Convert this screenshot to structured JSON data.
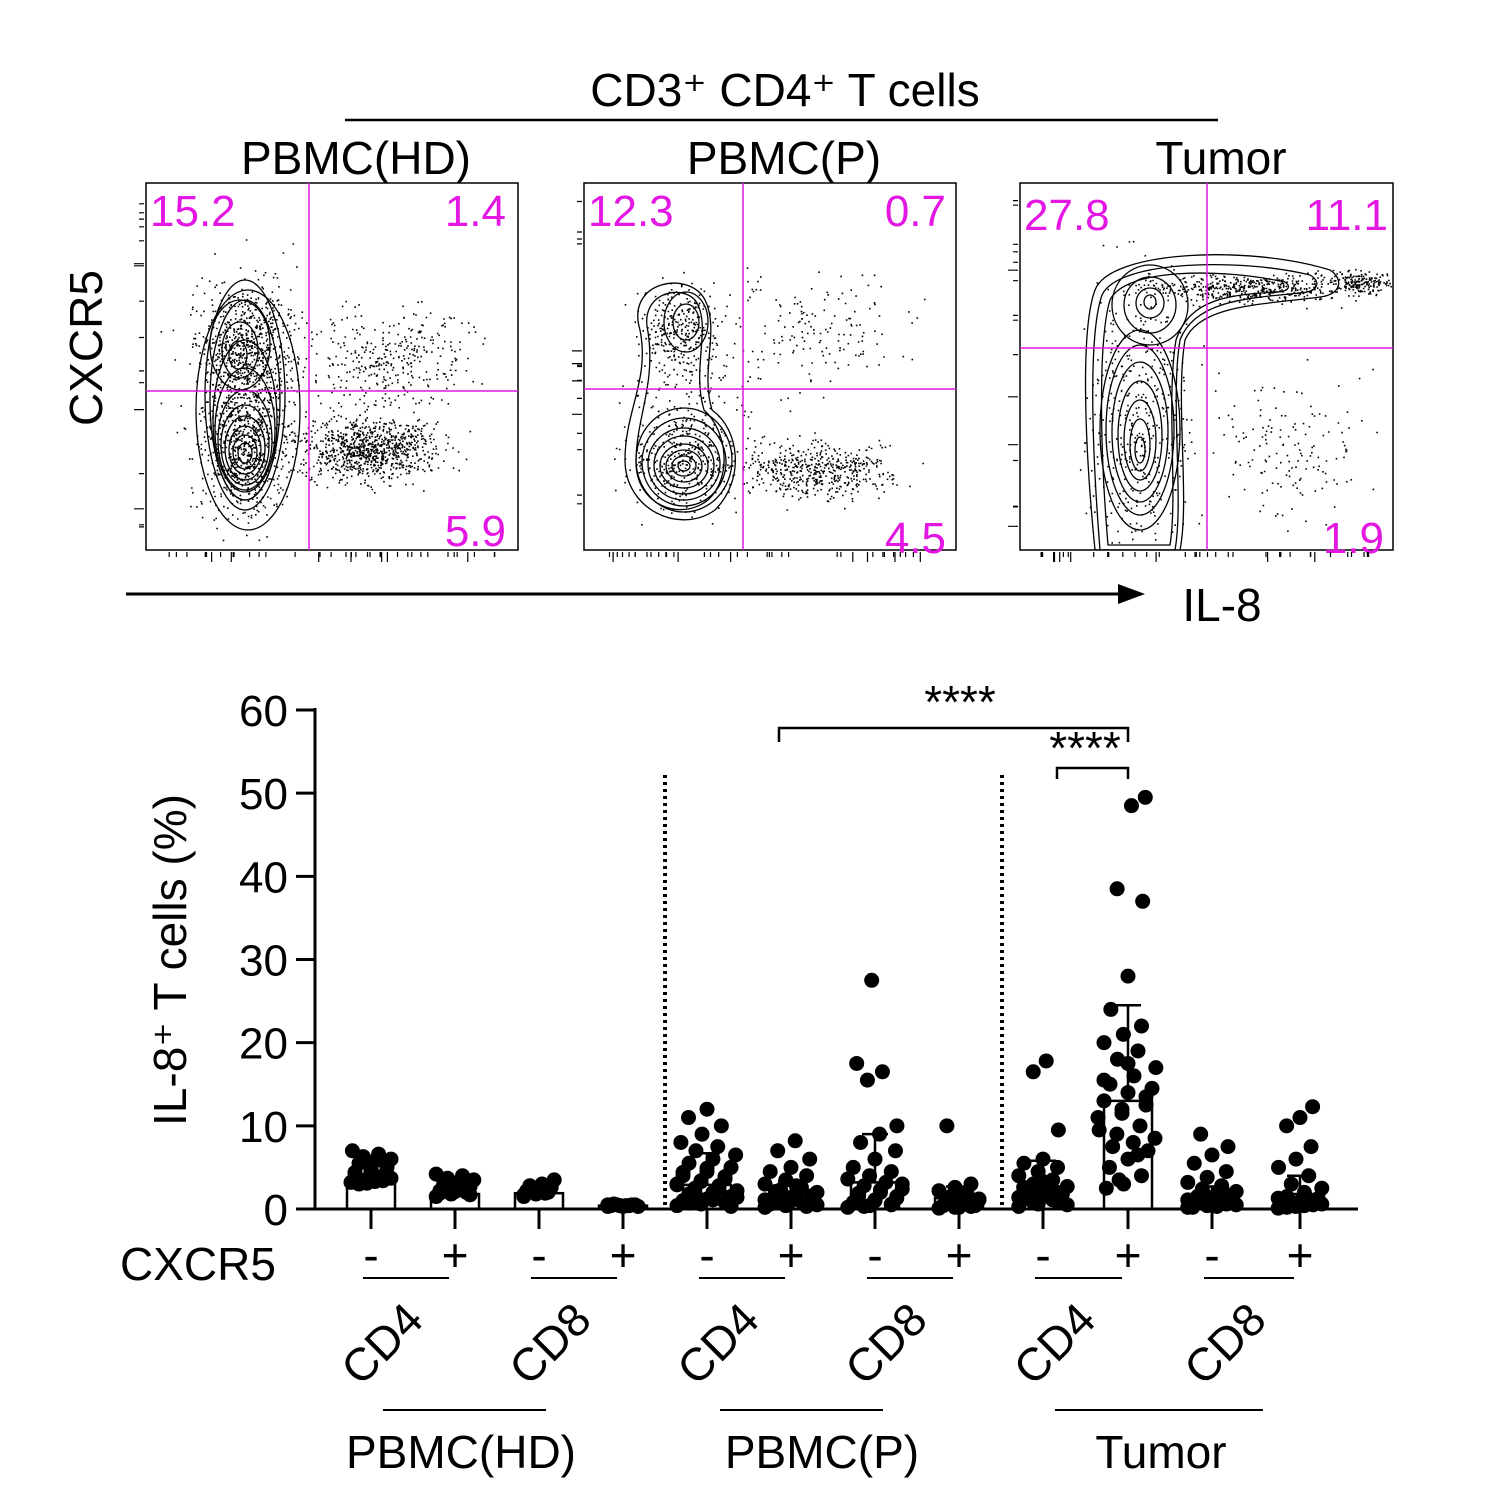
{
  "flow": {
    "header": "CD3⁺ CD4⁺ T cells",
    "y_marker": "CXCR5",
    "x_marker": "IL-8",
    "quadrant_color": "#e316e3",
    "panels": [
      {
        "title": "PBMC(HD)",
        "ul": "15.2",
        "ur": "1.4",
        "lr": "5.9"
      },
      {
        "title": "PBMC(P)",
        "ul": "12.3",
        "ur": "0.7",
        "lr": "4.5"
      },
      {
        "title": "Tumor",
        "ul": "27.8",
        "ur": "11.1",
        "lr": "1.9"
      }
    ]
  },
  "chart_data": {
    "type": "bar",
    "ylabel": "IL-8⁺ T cells (%)",
    "ylim": [
      0,
      60
    ],
    "yticks": [
      "0",
      "10",
      "20",
      "30",
      "40",
      "50",
      "60"
    ],
    "row_label": "CXCR5",
    "categories": [
      {
        "tissue": "PBMC(HD)",
        "cell": "CD4",
        "cxcr5": "-",
        "mean": 3.0,
        "err": 0.7,
        "points": [
          3.2,
          3.6,
          4.0,
          4.4,
          4.8,
          5.2,
          5.5,
          5.8,
          6.0,
          6.3,
          6.6,
          7.0,
          3.1,
          3.4,
          4.2,
          4.6,
          5.0,
          3.0,
          3.3,
          3.7
        ]
      },
      {
        "tissue": "PBMC(HD)",
        "cell": "CD4",
        "cxcr5": "+",
        "mean": 1.8,
        "err": 0.5,
        "points": [
          1.5,
          1.8,
          2.0,
          2.2,
          2.5,
          2.7,
          3.0,
          3.2,
          3.5,
          3.7,
          4.0,
          4.2,
          2.4,
          2.6,
          1.9,
          2.1,
          1.7,
          2.9
        ]
      },
      {
        "tissue": "PBMC(HD)",
        "cell": "CD8",
        "cxcr5": "-",
        "mean": 1.9,
        "err": 0.4,
        "points": [
          1.5,
          1.8,
          2.0,
          2.2,
          2.4,
          2.6,
          2.8,
          3.0,
          3.5,
          2.1,
          1.9,
          1.7
        ]
      },
      {
        "tissue": "PBMC(HD)",
        "cell": "CD8",
        "cxcr5": "+",
        "mean": 0.4,
        "err": 0.1,
        "points": [
          0.3,
          0.4,
          0.5,
          0.4,
          0.3,
          0.5,
          0.6,
          0.4,
          0.3,
          0.5,
          0.4,
          0.5
        ]
      },
      {
        "tissue": "PBMC(P)",
        "cell": "CD4",
        "cxcr5": "-",
        "mean": 2.9,
        "err": 3.8,
        "points": [
          0.4,
          0.6,
          0.8,
          1.0,
          1.2,
          1.5,
          1.8,
          2.0,
          2.2,
          2.5,
          2.8,
          3.0,
          3.3,
          3.6,
          4.0,
          4.5,
          5.0,
          5.5,
          6.0,
          6.5,
          7.0,
          7.5,
          8.0,
          9.0,
          10.0,
          11.0,
          12.0,
          0.5,
          0.7,
          1.1,
          1.4,
          1.9,
          2.4,
          2.9,
          3.4,
          3.9,
          4.4,
          4.9,
          0.3,
          0.9
        ]
      },
      {
        "tissue": "PBMC(P)",
        "cell": "CD4",
        "cxcr5": "+",
        "mean": 1.5,
        "err": 1.8,
        "points": [
          0.2,
          0.4,
          0.6,
          0.8,
          1.0,
          1.2,
          1.5,
          1.8,
          2.0,
          2.3,
          2.6,
          3.0,
          3.5,
          4.0,
          4.5,
          5.0,
          6.0,
          7.0,
          8.2,
          0.5,
          0.7,
          0.9,
          1.1,
          1.3,
          0.3,
          0.6,
          1.4,
          1.6,
          2.1,
          2.8
        ]
      },
      {
        "tissue": "PBMC(P)",
        "cell": "CD8",
        "cxcr5": "-",
        "mean": 3.2,
        "err": 5.8,
        "points": [
          0.2,
          0.4,
          0.6,
          0.8,
          1.0,
          1.3,
          1.6,
          2.0,
          2.4,
          2.8,
          3.2,
          3.6,
          4.0,
          4.5,
          5.0,
          6.0,
          7.0,
          8.0,
          9.0,
          10.0,
          15.5,
          16.5,
          17.5,
          27.5,
          0.5,
          0.7,
          1.1,
          1.5,
          1.9,
          2.3,
          3.0,
          0.3
        ]
      },
      {
        "tissue": "PBMC(P)",
        "cell": "CD8",
        "cxcr5": "+",
        "mean": 1.3,
        "err": 1.4,
        "points": [
          0.1,
          0.2,
          0.3,
          0.4,
          0.5,
          0.6,
          0.8,
          1.0,
          1.2,
          1.5,
          1.8,
          2.2,
          2.6,
          3.0,
          10.0,
          0.2,
          0.4,
          0.7,
          0.9,
          1.1
        ]
      },
      {
        "tissue": "Tumor",
        "cell": "CD4",
        "cxcr5": "-",
        "mean": 2.3,
        "err": 3.5,
        "points": [
          0.3,
          0.6,
          0.9,
          1.2,
          1.5,
          1.8,
          2.1,
          2.4,
          2.7,
          3.0,
          3.5,
          4.0,
          4.5,
          5.0,
          5.5,
          6.0,
          9.5,
          16.5,
          17.8,
          0.5,
          0.8,
          1.1,
          1.4,
          1.7,
          2.0,
          2.6,
          3.3
        ]
      },
      {
        "tissue": "Tumor",
        "cell": "CD4",
        "cxcr5": "+",
        "mean": 13.0,
        "err": 11.5,
        "points": [
          2.5,
          3.0,
          4.0,
          5.0,
          6.0,
          7.0,
          7.5,
          8.0,
          8.5,
          9.0,
          10.0,
          11.0,
          12.0,
          12.5,
          13.0,
          14.0,
          14.5,
          15.0,
          16.0,
          17.0,
          18.0,
          19.0,
          20.0,
          21.0,
          22.0,
          24.0,
          28.0,
          37.0,
          38.5,
          48.5,
          49.5,
          3.5,
          6.5,
          9.5,
          11.5,
          13.5,
          15.5,
          17.5
        ]
      },
      {
        "tissue": "Tumor",
        "cell": "CD8",
        "cxcr5": "-",
        "mean": 1.3,
        "err": 1.4,
        "points": [
          0.2,
          0.4,
          0.6,
          0.8,
          1.0,
          1.2,
          1.5,
          1.8,
          2.1,
          2.4,
          2.8,
          3.2,
          3.8,
          4.5,
          5.5,
          6.5,
          7.5,
          9.0,
          0.3,
          0.5,
          0.7,
          0.9,
          1.1,
          1.4,
          1.7,
          0.2,
          0.6
        ]
      },
      {
        "tissue": "Tumor",
        "cell": "CD8",
        "cxcr5": "+",
        "mean": 1.8,
        "err": 2.2,
        "points": [
          0.1,
          0.3,
          0.5,
          0.7,
          0.9,
          1.2,
          1.5,
          2.0,
          2.5,
          3.0,
          4.0,
          5.0,
          6.0,
          7.5,
          10.0,
          11.0,
          12.3,
          0.2,
          0.4,
          0.6,
          0.8,
          1.0,
          1.3
        ]
      }
    ],
    "cell_labels": [
      "CD4",
      "CD8",
      "CD4",
      "CD8",
      "CD4",
      "CD8"
    ],
    "tissue_labels": [
      "PBMC(HD)",
      "PBMC(P)",
      "Tumor"
    ],
    "significance": [
      {
        "from": "PBMC(P) CD4 CXCR5+",
        "to": "Tumor CD4 CXCR5+",
        "label": "****"
      },
      {
        "from": "Tumor CD4 CXCR5-",
        "to": "Tumor CD4 CXCR5+",
        "label": "****"
      }
    ]
  }
}
